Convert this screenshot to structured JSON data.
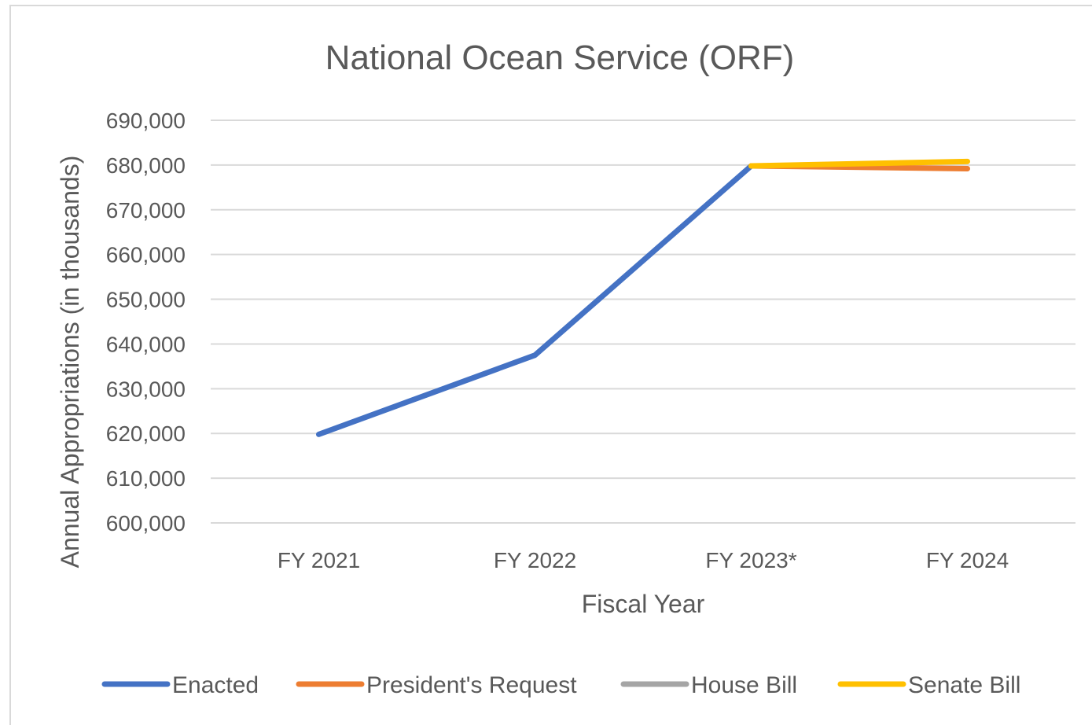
{
  "chart_data": {
    "type": "line",
    "title": "National Ocean Service (ORF)",
    "xlabel": "Fiscal Year",
    "ylabel": "Annual Appropriations (in thousands)",
    "categories": [
      "FY 2021",
      "FY 2022",
      "FY 2023*",
      "FY 2024"
    ],
    "ylim": [
      600000,
      690000
    ],
    "yticks": [
      "690,000",
      "680,000",
      "670,000",
      "660,000",
      "650,000",
      "640,000",
      "630,000",
      "620,000",
      "610,000",
      "600,000"
    ],
    "grid": true,
    "legend_position": "bottom",
    "series": [
      {
        "name": "Enacted",
        "color": "#4472c4",
        "values": [
          619800,
          637500,
          679800,
          null
        ]
      },
      {
        "name": "President's Request",
        "color": "#ed7d31",
        "values": [
          null,
          null,
          679800,
          679200
        ]
      },
      {
        "name": "House Bill",
        "color": "#a5a5a5",
        "values": [
          null,
          null,
          null,
          null
        ]
      },
      {
        "name": "Senate Bill",
        "color": "#ffc000",
        "values": [
          null,
          null,
          679800,
          680800
        ]
      }
    ]
  }
}
